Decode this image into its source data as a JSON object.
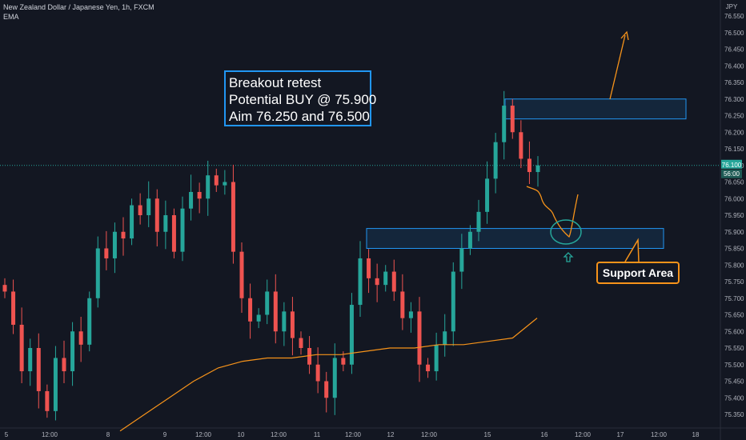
{
  "header": {
    "symbol_line": "New Zealand Dollar / Japanese Yen, 1h, FXCM",
    "indicator": "EMA"
  },
  "currency_label": "JPY",
  "price_tags": {
    "last": "76.100",
    "countdown": "56:00"
  },
  "annotations": {
    "note_lines": [
      "Breakout retest",
      "Potential BUY @ 75.900",
      "Aim 76.250 and 76.500"
    ],
    "support_label": "Support Area"
  },
  "colors": {
    "background": "#131722",
    "up_candle": "#26a69a",
    "down_candle": "#ef5350",
    "ema": "#f7931a",
    "zone_border": "#2196f3",
    "zone_fill": "rgba(33,150,243,0.12)",
    "last_price_line": "#26a69a",
    "grid": "#1e222d"
  },
  "chart_data": {
    "type": "candlestick",
    "title": "New Zealand Dollar / Japanese Yen, 1h, FXCM",
    "ylabel": "JPY",
    "ylim": [
      75.33,
      76.58
    ],
    "y_ticks": [
      76.55,
      76.5,
      76.45,
      76.4,
      76.35,
      76.3,
      76.25,
      76.2,
      76.15,
      76.1,
      76.05,
      76.0,
      75.95,
      75.9,
      75.85,
      75.8,
      75.75,
      75.7,
      75.65,
      75.6,
      75.55,
      75.5,
      75.45,
      75.4,
      75.35
    ],
    "x_tick_labels": [
      "5",
      "12:00",
      "8",
      "9",
      "12:00",
      "10",
      "12:00",
      "11",
      "12:00",
      "12",
      "12:00",
      "15",
      "16",
      "12:00",
      "17",
      "12:00",
      "18"
    ],
    "grid": false,
    "last_price": 76.1,
    "closes": [
      75.72,
      75.62,
      75.48,
      75.55,
      75.42,
      75.36,
      75.52,
      75.48,
      75.6,
      75.56,
      75.7,
      75.85,
      75.82,
      75.9,
      75.88,
      75.98,
      75.95,
      76.0,
      75.9,
      75.95,
      75.84,
      75.97,
      76.02,
      76.0,
      76.07,
      76.04,
      76.05,
      75.84,
      75.7,
      75.63,
      75.65,
      75.72,
      75.6,
      75.66,
      75.58,
      75.55,
      75.5,
      75.45,
      75.4,
      75.52,
      75.5,
      75.68,
      75.82,
      75.76,
      75.74,
      75.78,
      75.72,
      75.64,
      75.66,
      75.5,
      75.48,
      75.56,
      75.6,
      75.78,
      75.85,
      75.9,
      75.96,
      76.06,
      76.17,
      76.28,
      76.2,
      76.12,
      76.08,
      76.1
    ],
    "emphasis_zones": [
      {
        "name": "resistance-zone",
        "y_range": [
          76.24,
          76.3
        ]
      },
      {
        "name": "support-zone",
        "y_range": [
          75.85,
          75.91
        ]
      }
    ],
    "ema_series": [
      75.3,
      75.35,
      75.4,
      75.45,
      75.49,
      75.51,
      75.52,
      75.52,
      75.53,
      75.53,
      75.54,
      75.55,
      75.55,
      75.56,
      75.56,
      75.57,
      75.58,
      75.64
    ]
  }
}
